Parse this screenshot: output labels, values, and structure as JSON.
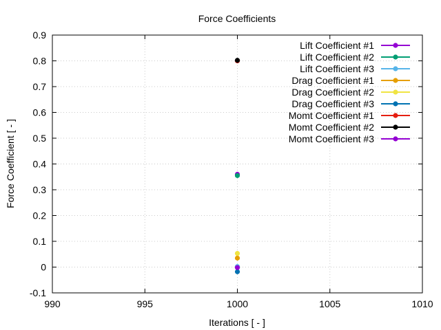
{
  "chart_data": {
    "type": "scatter",
    "title": "Force Coefficients",
    "xlabel": "Iterations [ - ]",
    "ylabel": "Force Coefficient [ - ]",
    "xlim": [
      990,
      1010
    ],
    "ylim": [
      -0.1,
      0.9
    ],
    "xticks": [
      990,
      995,
      1000,
      1005,
      1010
    ],
    "yticks": [
      -0.1,
      0,
      0.1,
      0.2,
      0.3,
      0.4,
      0.5,
      0.6,
      0.7,
      0.8,
      0.9
    ],
    "grid": true,
    "legend_position": "top-right",
    "series": [
      {
        "name": "Lift Coefficient #1",
        "color": "#9400d3",
        "x": [
          1000
        ],
        "y": [
          0.36
        ]
      },
      {
        "name": "Lift Coefficient #2",
        "color": "#009e73",
        "x": [
          1000
        ],
        "y": [
          0.355
        ]
      },
      {
        "name": "Lift Coefficient #3",
        "color": "#56b4e9",
        "x": [
          1000
        ],
        "y": [
          0.002
        ]
      },
      {
        "name": "Drag Coefficient #1",
        "color": "#e69f00",
        "x": [
          1000
        ],
        "y": [
          0.035
        ]
      },
      {
        "name": "Drag Coefficient #2",
        "color": "#f0e442",
        "x": [
          1000
        ],
        "y": [
          0.053
        ]
      },
      {
        "name": "Drag Coefficient #3",
        "color": "#0072b2",
        "x": [
          1000
        ],
        "y": [
          -0.018
        ]
      },
      {
        "name": "Momt Coefficient #1",
        "color": "#e51e10",
        "x": [
          1000
        ],
        "y": [
          0.8
        ]
      },
      {
        "name": "Momt Coefficient #2",
        "color": "#000000",
        "x": [
          1000
        ],
        "y": [
          0.802
        ]
      },
      {
        "name": "Momt Coefficient #3",
        "color": "#9400d3",
        "x": [
          1000
        ],
        "y": [
          -0.002
        ]
      }
    ]
  }
}
